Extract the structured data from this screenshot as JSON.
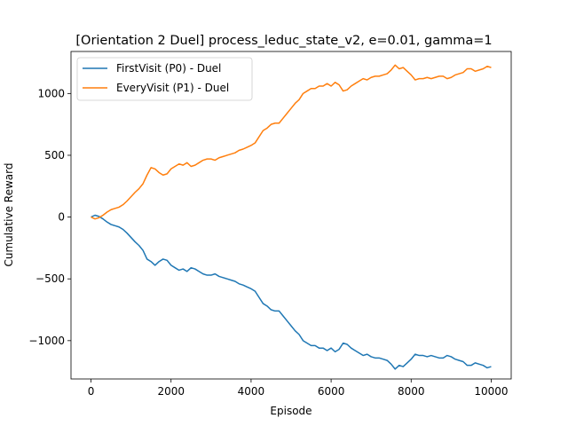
{
  "chart_data": {
    "type": "line",
    "title": "[Orientation 2 Duel] process_leduc_state_v2, e=0.01, gamma=1",
    "xlabel": "Episode",
    "ylabel": "Cumulative Reward",
    "xlim": [
      -500,
      10500
    ],
    "ylim": [
      -1310,
      1340
    ],
    "xticks": [
      0,
      2000,
      4000,
      6000,
      8000,
      10000
    ],
    "xtick_labels": [
      "0",
      "2000",
      "4000",
      "6000",
      "8000",
      "10000"
    ],
    "yticks": [
      -1000,
      -500,
      0,
      500,
      1000
    ],
    "ytick_labels": [
      "−1000",
      "−500",
      "0",
      "500",
      "1000"
    ],
    "grid": false,
    "legend_position": "top-left",
    "series": [
      {
        "name": "FirstVisit (P0) - Duel",
        "color": "#1f77b4",
        "x": [
          0,
          100,
          200,
          300,
          400,
          500,
          600,
          700,
          800,
          900,
          1000,
          1100,
          1200,
          1300,
          1400,
          1500,
          1600,
          1700,
          1800,
          1900,
          2000,
          2100,
          2200,
          2300,
          2400,
          2500,
          2600,
          2700,
          2800,
          2900,
          3000,
          3100,
          3200,
          3300,
          3400,
          3500,
          3600,
          3700,
          3800,
          3900,
          4000,
          4100,
          4200,
          4300,
          4400,
          4500,
          4600,
          4700,
          4800,
          4900,
          5000,
          5100,
          5200,
          5300,
          5400,
          5500,
          5600,
          5700,
          5800,
          5900,
          6000,
          6100,
          6200,
          6300,
          6400,
          6500,
          6600,
          6700,
          6800,
          6900,
          7000,
          7100,
          7200,
          7300,
          7400,
          7500,
          7600,
          7700,
          7800,
          7900,
          8000,
          8100,
          8200,
          8300,
          8400,
          8500,
          8600,
          8700,
          8800,
          8900,
          9000,
          9100,
          9200,
          9300,
          9400,
          9500,
          9600,
          9700,
          9800,
          9900,
          10000
        ],
        "y": [
          0,
          15,
          5,
          -15,
          -40,
          -60,
          -70,
          -80,
          -100,
          -130,
          -165,
          -200,
          -230,
          -270,
          -340,
          -360,
          -390,
          -360,
          -340,
          -350,
          -390,
          -410,
          -430,
          -420,
          -440,
          -410,
          -420,
          -440,
          -460,
          -470,
          -470,
          -460,
          -480,
          -490,
          -500,
          -510,
          -520,
          -540,
          -550,
          -565,
          -580,
          -600,
          -650,
          -700,
          -720,
          -750,
          -760,
          -760,
          -800,
          -840,
          -880,
          -920,
          -950,
          -1000,
          -1020,
          -1040,
          -1040,
          -1060,
          -1060,
          -1080,
          -1060,
          -1090,
          -1070,
          -1020,
          -1030,
          -1060,
          -1080,
          -1100,
          -1120,
          -1110,
          -1130,
          -1140,
          -1140,
          -1150,
          -1160,
          -1190,
          -1230,
          -1200,
          -1210,
          -1180,
          -1150,
          -1110,
          -1120,
          -1120,
          -1130,
          -1120,
          -1130,
          -1140,
          -1140,
          -1120,
          -1130,
          -1150,
          -1160,
          -1170,
          -1200,
          -1200,
          -1180,
          -1190,
          -1200,
          -1220,
          -1210
        ]
      },
      {
        "name": "EveryVisit (P1) - Duel",
        "color": "#ff7f0e",
        "x": [
          0,
          100,
          200,
          300,
          400,
          500,
          600,
          700,
          800,
          900,
          1000,
          1100,
          1200,
          1300,
          1400,
          1500,
          1600,
          1700,
          1800,
          1900,
          2000,
          2100,
          2200,
          2300,
          2400,
          2500,
          2600,
          2700,
          2800,
          2900,
          3000,
          3100,
          3200,
          3300,
          3400,
          3500,
          3600,
          3700,
          3800,
          3900,
          4000,
          4100,
          4200,
          4300,
          4400,
          4500,
          4600,
          4700,
          4800,
          4900,
          5000,
          5100,
          5200,
          5300,
          5400,
          5500,
          5600,
          5700,
          5800,
          5900,
          6000,
          6100,
          6200,
          6300,
          6400,
          6500,
          6600,
          6700,
          6800,
          6900,
          7000,
          7100,
          7200,
          7300,
          7400,
          7500,
          7600,
          7700,
          7800,
          7900,
          8000,
          8100,
          8200,
          8300,
          8400,
          8500,
          8600,
          8700,
          8800,
          8900,
          9000,
          9100,
          9200,
          9300,
          9400,
          9500,
          9600,
          9700,
          9800,
          9900,
          10000
        ],
        "y": [
          0,
          -15,
          -5,
          15,
          40,
          60,
          70,
          80,
          100,
          130,
          165,
          200,
          230,
          270,
          340,
          400,
          390,
          360,
          340,
          350,
          390,
          410,
          430,
          420,
          440,
          410,
          420,
          440,
          460,
          470,
          470,
          460,
          480,
          490,
          500,
          510,
          520,
          540,
          550,
          565,
          580,
          600,
          650,
          700,
          720,
          750,
          760,
          760,
          800,
          840,
          880,
          920,
          950,
          1000,
          1020,
          1040,
          1040,
          1060,
          1060,
          1080,
          1060,
          1090,
          1070,
          1020,
          1030,
          1060,
          1080,
          1100,
          1120,
          1110,
          1130,
          1140,
          1140,
          1150,
          1160,
          1190,
          1230,
          1200,
          1210,
          1180,
          1150,
          1110,
          1120,
          1120,
          1130,
          1120,
          1130,
          1140,
          1140,
          1120,
          1130,
          1150,
          1160,
          1170,
          1200,
          1200,
          1180,
          1190,
          1200,
          1220,
          1210
        ]
      }
    ]
  }
}
